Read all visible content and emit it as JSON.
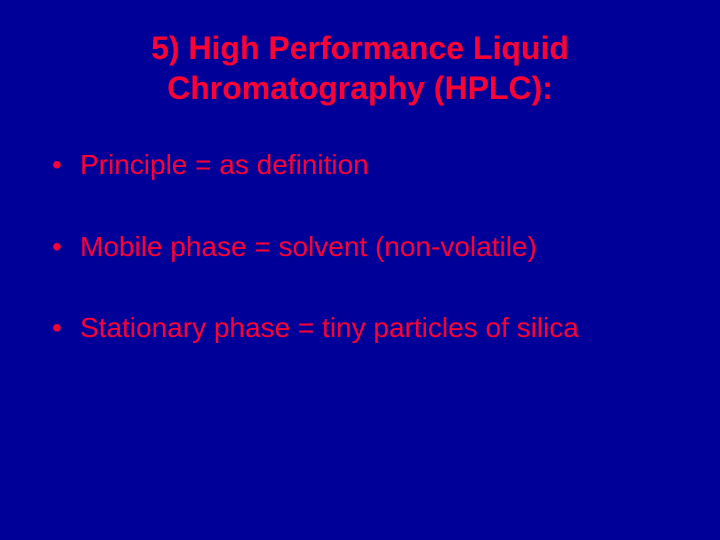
{
  "slide": {
    "background_color": "#000099",
    "text_color": "#ff0033",
    "font_family": "Arial",
    "title": {
      "line1": "5) High Performance Liquid",
      "line2": "Chromatography (HPLC):",
      "fontsize": 32,
      "weight": "bold",
      "align": "center"
    },
    "bullets": {
      "fontsize": 28,
      "items": [
        "Principle = as definition",
        "Mobile phase = solvent (non-volatile)",
        "Stationary phase = tiny particles of silica"
      ]
    }
  }
}
